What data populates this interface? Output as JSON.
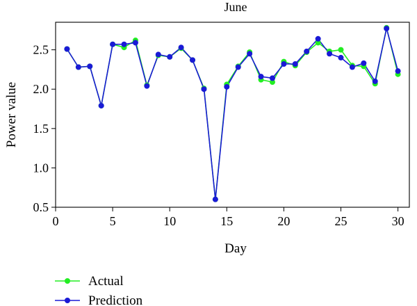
{
  "chart_data": {
    "type": "line",
    "title": "June",
    "xlabel": "Day",
    "ylabel": "Power value",
    "xlim": [
      0,
      31
    ],
    "ylim": [
      0.5,
      2.85
    ],
    "xticks": [
      0,
      5,
      10,
      15,
      20,
      25,
      30
    ],
    "xtick_labels": [
      "0",
      "5",
      "10",
      "15",
      "20",
      "25",
      "30"
    ],
    "yticks": [
      0.5,
      1.0,
      1.5,
      2.0,
      2.5
    ],
    "ytick_labels": [
      "0.5",
      "1.0",
      "1.5",
      "2.0",
      "2.5"
    ],
    "grid": false,
    "legend_position": "below",
    "x": [
      1,
      2,
      3,
      4,
      5,
      6,
      7,
      8,
      9,
      10,
      11,
      12,
      13,
      14,
      15,
      16,
      17,
      18,
      19,
      20,
      21,
      22,
      23,
      24,
      25,
      26,
      27,
      28,
      29,
      30
    ],
    "series": [
      {
        "name": "Actual",
        "color": "#22ee22",
        "values": [
          2.51,
          2.28,
          2.29,
          1.79,
          2.57,
          2.53,
          2.62,
          2.05,
          2.43,
          2.41,
          2.52,
          2.37,
          2.01,
          0.6,
          2.06,
          2.29,
          2.47,
          2.12,
          2.09,
          2.35,
          2.3,
          2.47,
          2.59,
          2.48,
          2.5,
          2.3,
          2.29,
          2.07,
          2.78,
          2.19
        ]
      },
      {
        "name": "Prediction",
        "color": "#1a1ad6",
        "values": [
          2.51,
          2.28,
          2.29,
          1.79,
          2.57,
          2.57,
          2.59,
          2.04,
          2.44,
          2.41,
          2.53,
          2.37,
          2.0,
          0.6,
          2.03,
          2.28,
          2.45,
          2.16,
          2.14,
          2.32,
          2.32,
          2.48,
          2.64,
          2.45,
          2.4,
          2.28,
          2.33,
          2.1,
          2.77,
          2.23
        ]
      }
    ]
  }
}
